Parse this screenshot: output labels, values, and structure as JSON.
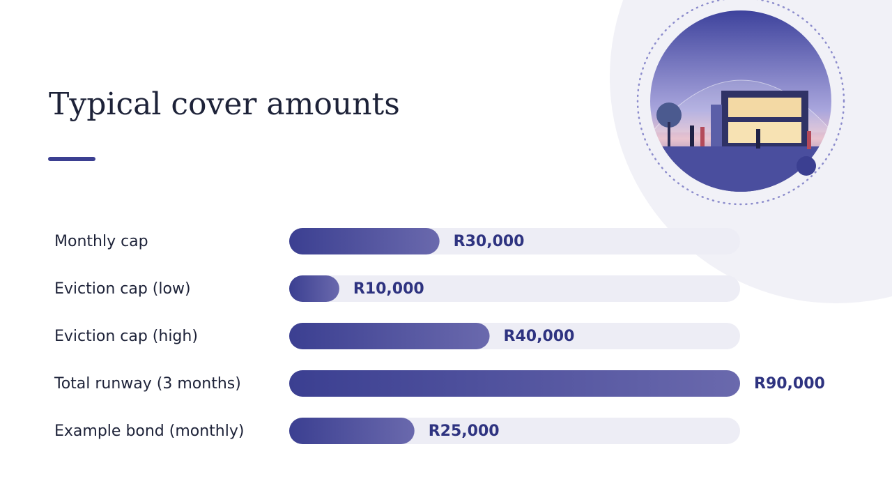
{
  "chart_data": {
    "type": "bar",
    "orientation": "horizontal",
    "title": "Typical cover amounts",
    "categories": [
      "Monthly cap",
      "Eviction cap (low)",
      "Eviction cap (high)",
      "Total runway (3 months)",
      "Example bond (monthly)"
    ],
    "values": [
      30000,
      10000,
      40000,
      90000,
      25000
    ],
    "value_labels": [
      "R30,000",
      "R10,000",
      "R40,000",
      "R90,000",
      "R25,000"
    ],
    "color": "#3b3f91",
    "xlim": [
      0,
      90000
    ]
  }
}
